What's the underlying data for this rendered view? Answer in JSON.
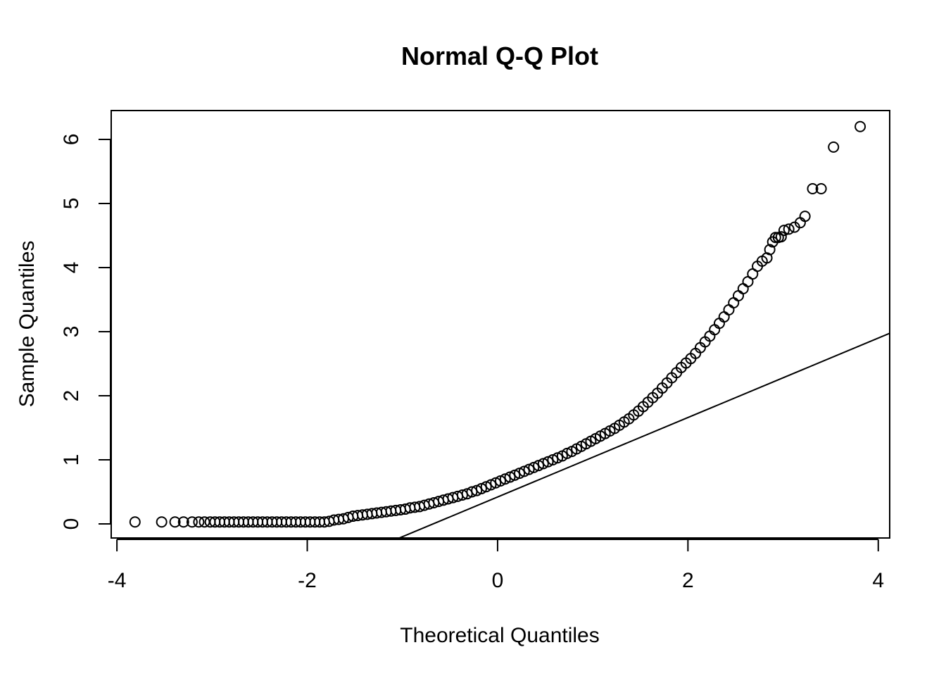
{
  "chart_data": {
    "type": "scatter",
    "title": "Normal Q-Q Plot",
    "xlabel": "Theoretical Quantiles",
    "ylabel": "Sample Quantiles",
    "xlim": [
      -4.06,
      4.12
    ],
    "ylim": [
      -0.22,
      6.45
    ],
    "x_ticks": [
      -4,
      -2,
      0,
      2,
      4
    ],
    "y_ticks": [
      0,
      1,
      2,
      3,
      4,
      5,
      6
    ],
    "grid": false,
    "legend": "none",
    "reference_line": {
      "description": "qqline through quartiles",
      "slope": 0.62,
      "intercept": 0.42
    },
    "series": [
      {
        "points_description": "Sample quantiles vs theoretical normal quantiles (sorted sample, right-skewed)",
        "x": [
          -3.81,
          -3.53,
          -3.39,
          -3.3,
          -3.21,
          -3.14,
          -3.08,
          -3.02,
          -2.97,
          -2.92,
          -2.87,
          -2.82,
          -2.77,
          -2.72,
          -2.67,
          -2.62,
          -2.57,
          -2.52,
          -2.47,
          -2.42,
          -2.37,
          -2.32,
          -2.27,
          -2.22,
          -2.17,
          -2.12,
          -2.07,
          -2.02,
          -1.97,
          -1.92,
          -1.87,
          -1.82,
          -1.77,
          -1.72,
          -1.67,
          -1.62,
          -1.57,
          -1.52,
          -1.47,
          -1.42,
          -1.37,
          -1.32,
          -1.27,
          -1.22,
          -1.17,
          -1.12,
          -1.07,
          -1.02,
          -0.97,
          -0.92,
          -0.87,
          -0.82,
          -0.77,
          -0.72,
          -0.67,
          -0.62,
          -0.57,
          -0.52,
          -0.47,
          -0.42,
          -0.37,
          -0.32,
          -0.27,
          -0.22,
          -0.17,
          -0.12,
          -0.07,
          -0.02,
          0.03,
          0.08,
          0.13,
          0.18,
          0.23,
          0.28,
          0.33,
          0.38,
          0.43,
          0.48,
          0.53,
          0.58,
          0.63,
          0.68,
          0.73,
          0.78,
          0.83,
          0.88,
          0.93,
          0.98,
          1.03,
          1.08,
          1.13,
          1.18,
          1.23,
          1.28,
          1.33,
          1.38,
          1.43,
          1.48,
          1.53,
          1.58,
          1.63,
          1.68,
          1.73,
          1.78,
          1.83,
          1.88,
          1.93,
          1.98,
          2.03,
          2.08,
          2.13,
          2.18,
          2.23,
          2.28,
          2.33,
          2.38,
          2.43,
          2.48,
          2.53,
          2.58,
          2.63,
          2.68,
          2.73,
          2.78,
          2.83,
          2.86,
          2.89,
          2.92,
          2.95,
          2.98,
          3.01,
          3.06,
          3.12,
          3.18,
          3.23,
          3.31,
          3.4,
          3.53,
          3.81
        ],
        "y": [
          0.03,
          0.03,
          0.03,
          0.03,
          0.03,
          0.03,
          0.03,
          0.03,
          0.03,
          0.03,
          0.03,
          0.03,
          0.03,
          0.03,
          0.03,
          0.03,
          0.03,
          0.03,
          0.03,
          0.03,
          0.03,
          0.03,
          0.03,
          0.03,
          0.03,
          0.03,
          0.03,
          0.03,
          0.03,
          0.03,
          0.03,
          0.03,
          0.04,
          0.06,
          0.07,
          0.08,
          0.1,
          0.12,
          0.13,
          0.14,
          0.15,
          0.16,
          0.17,
          0.18,
          0.19,
          0.2,
          0.21,
          0.22,
          0.23,
          0.25,
          0.26,
          0.27,
          0.29,
          0.31,
          0.33,
          0.35,
          0.37,
          0.39,
          0.41,
          0.43,
          0.45,
          0.47,
          0.5,
          0.52,
          0.55,
          0.58,
          0.61,
          0.64,
          0.67,
          0.7,
          0.73,
          0.76,
          0.79,
          0.82,
          0.85,
          0.88,
          0.91,
          0.94,
          0.97,
          1.0,
          1.03,
          1.06,
          1.1,
          1.13,
          1.17,
          1.21,
          1.25,
          1.29,
          1.33,
          1.37,
          1.41,
          1.45,
          1.49,
          1.54,
          1.59,
          1.64,
          1.7,
          1.76,
          1.83,
          1.9,
          1.97,
          2.04,
          2.12,
          2.2,
          2.28,
          2.36,
          2.44,
          2.51,
          2.58,
          2.66,
          2.75,
          2.84,
          2.93,
          3.03,
          3.13,
          3.23,
          3.34,
          3.45,
          3.56,
          3.67,
          3.78,
          3.9,
          4.02,
          4.1,
          4.15,
          4.28,
          4.4,
          4.47,
          4.47,
          4.48,
          4.58,
          4.6,
          4.63,
          4.7,
          4.8,
          5.23,
          5.23,
          5.88,
          6.2
        ]
      }
    ]
  }
}
